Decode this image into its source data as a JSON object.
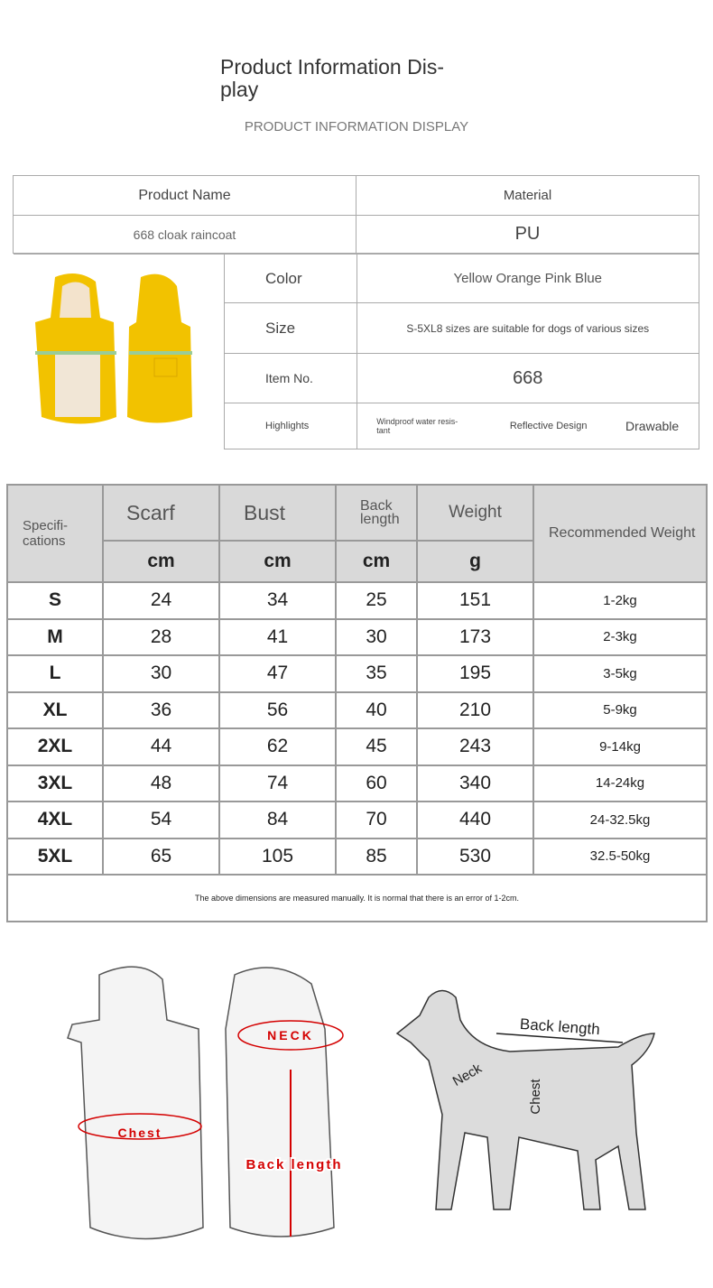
{
  "header": {
    "title": "Product Information Dis-play",
    "subtitle": "PRODUCT INFORMATION DISPLAY"
  },
  "info": {
    "product_name_label": "Product Name",
    "material_label": "Material",
    "product_name": "668 cloak raincoat",
    "material": "PU",
    "rows": [
      {
        "label": "Color",
        "value": "Yellow Orange Pink Blue"
      },
      {
        "label": "Size",
        "value": "S-5XL8 sizes are suitable for dogs of various sizes"
      },
      {
        "label": "Item No.",
        "value": "668"
      }
    ],
    "highlights_label": "Highlights",
    "highlights": [
      "Windproof water resis-tant",
      "Reflective Design",
      "Drawable"
    ],
    "product_color": "#f2c200"
  },
  "spec": {
    "headers": {
      "spec": "Specifi-cations",
      "scarf": "Scarf",
      "bust": "Bust",
      "back": "Back length",
      "weight": "Weight",
      "rec": "Recommended Weight"
    },
    "units": [
      "cm",
      "cm",
      "cm",
      "g"
    ],
    "rows": [
      [
        "S",
        "24",
        "34",
        "25",
        "151",
        "1-2kg"
      ],
      [
        "M",
        "28",
        "41",
        "30",
        "173",
        "2-3kg"
      ],
      [
        "L",
        "30",
        "47",
        "35",
        "195",
        "3-5kg"
      ],
      [
        "XL",
        "36",
        "56",
        "40",
        "210",
        "5-9kg"
      ],
      [
        "2XL",
        "44",
        "62",
        "45",
        "243",
        "9-14kg"
      ],
      [
        "3XL",
        "48",
        "74",
        "60",
        "340",
        "14-24kg"
      ],
      [
        "4XL",
        "54",
        "84",
        "70",
        "440",
        "24-32.5kg"
      ],
      [
        "5XL",
        "65",
        "105",
        "85",
        "530",
        "32.5-50kg"
      ]
    ],
    "note": "The above dimensions are measured manually. It is normal that there is an error of 1-2cm."
  },
  "diagram": {
    "neck_caps": "NECK",
    "chest_caps": "Chest",
    "back_caps": "Back length",
    "dog_back": "Back length",
    "dog_neck": "Neck",
    "dog_chest": "Chest",
    "accent": "#d40000"
  }
}
